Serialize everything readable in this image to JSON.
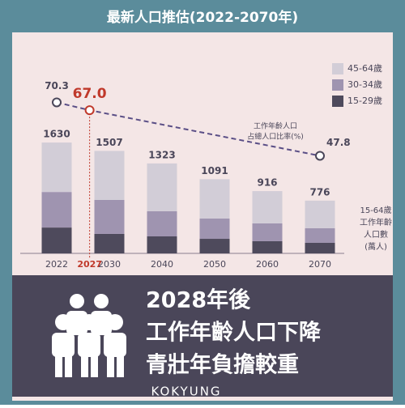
{
  "chart_data": {
    "type": "stacked-bar-line",
    "title": "最新人口推估(2022-2070年)",
    "categories": [
      "2022",
      "2030",
      "2040",
      "2050",
      "2060",
      "2070"
    ],
    "series": [
      {
        "name": "15-29歲",
        "color": "#4e4a5c",
        "values": [
          380,
          286,
          250,
          214,
          179,
          155
        ]
      },
      {
        "name": "30-34歲",
        "color": "#9f94b0",
        "values": [
          523,
          500,
          369,
          298,
          262,
          214
        ]
      },
      {
        "name": "45-64歲",
        "color": "#d2cdd7",
        "values": [
          727,
          721,
          704,
          579,
          475,
          407
        ]
      }
    ],
    "totals": [
      1630,
      1507,
      1323,
      1091,
      916,
      776
    ],
    "ylim": [
      0,
      2000
    ],
    "y_label": [
      "15-64歲",
      "工作年齡",
      "人口數",
      "(萬人)"
    ],
    "line": {
      "axis": "y2",
      "color": "#5a4e86",
      "highlight_color": "#c0392b",
      "x": [
        2022,
        2027,
        2070
      ],
      "values": [
        70.3,
        67.0,
        47.8
      ],
      "value_labels": [
        "70.3",
        "67.0",
        "47.8"
      ]
    },
    "y2lim": [
      20,
      80
    ],
    "annotation": [
      "工作年齡人口",
      "占總人口比率(%)"
    ],
    "message": [
      "2028年後",
      "工作年齡人口下降",
      "青壯年負擔較重"
    ],
    "watermark": "KOKYUNG"
  }
}
